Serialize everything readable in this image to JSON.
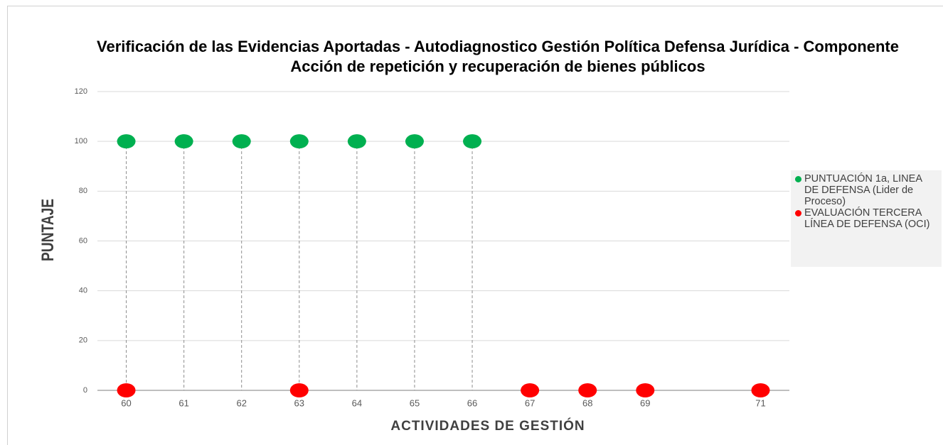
{
  "chart_data": {
    "type": "scatter",
    "title": "Verificación de las Evidencias Aportadas - Autodiagnostico Gestión Política Defensa Jurídica - Componente Acción de repetición y recuperación de bienes públicos",
    "x_label": "ACTIVIDADES DE GESTIÓN",
    "y_label": "PUNTAJE",
    "categories": [
      "60",
      "61",
      "62",
      "63",
      "64",
      "65",
      "66",
      "67",
      "68",
      "69",
      null,
      "71"
    ],
    "series": [
      {
        "name": "PUNTUACIÓN 1a, LINEA DE DEFENSA (Lider de Proceso)",
        "color": "#00b050",
        "values": [
          100,
          100,
          100,
          100,
          100,
          100,
          100,
          null,
          null,
          null,
          null,
          null
        ]
      },
      {
        "name": "EVALUACIÓN TERCERA LÍNEA DE DEFENSA (OCI)",
        "color": "#ff0000",
        "values": [
          0,
          null,
          null,
          0,
          null,
          null,
          null,
          0,
          0,
          0,
          null,
          0
        ]
      }
    ],
    "ylim": [
      0,
      120
    ],
    "yticks": [
      0,
      20,
      40,
      60,
      80,
      100,
      120
    ],
    "grid": true,
    "legend": "right",
    "drop_lines": true
  }
}
